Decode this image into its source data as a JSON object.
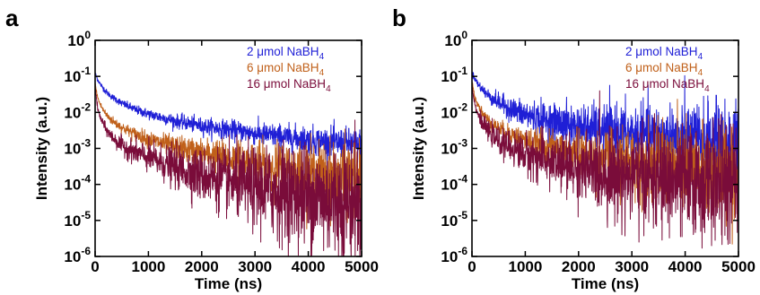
{
  "chart_data": [
    {
      "type": "line",
      "panel_label": "a",
      "xlabel": "Time (ns)",
      "ylabel": "Intensity (a.u.)",
      "xlim": [
        0,
        5000
      ],
      "ylim": [
        1e-06,
        1
      ],
      "yscale": "log",
      "grid": false,
      "legend_placement": "top-right",
      "x_ticks": [
        0,
        1000,
        2000,
        3000,
        4000,
        5000
      ],
      "y_ticks": [
        {
          "value": 1,
          "mantissa": "10",
          "exponent": "0"
        },
        {
          "value": 0.1,
          "mantissa": "10",
          "exponent": "-1"
        },
        {
          "value": 0.01,
          "mantissa": "10",
          "exponent": "-2"
        },
        {
          "value": 0.001,
          "mantissa": "10",
          "exponent": "-3"
        },
        {
          "value": 0.0001,
          "mantissa": "10",
          "exponent": "-4"
        },
        {
          "value": 1e-05,
          "mantissa": "10",
          "exponent": "-5"
        },
        {
          "value": 1e-06,
          "mantissa": "10",
          "exponent": "-6"
        }
      ],
      "series": [
        {
          "legend": {
            "prefix": "2 μmol NaBH",
            "subscript": "4"
          },
          "color": "#1f1fd6",
          "x": [
            0,
            50,
            100,
            200,
            300,
            500,
            750,
            1000,
            1500,
            2000,
            2500,
            3000,
            3500,
            4000,
            4500,
            5000
          ],
          "y": [
            0.12,
            0.08,
            0.06,
            0.038,
            0.028,
            0.018,
            0.012,
            0.009,
            0.0058,
            0.0042,
            0.0033,
            0.0026,
            0.0021,
            0.0017,
            0.0014,
            0.0012
          ],
          "noise_decades": [
            0.03,
            0.03,
            0.03,
            0.04,
            0.04,
            0.05,
            0.06,
            0.07,
            0.09,
            0.11,
            0.13,
            0.15,
            0.17,
            0.19,
            0.21,
            0.23
          ]
        },
        {
          "legend": {
            "prefix": "6 μmol NaBH",
            "subscript": "4"
          },
          "color": "#c0601a",
          "x": [
            0,
            50,
            100,
            200,
            300,
            500,
            750,
            1000,
            1500,
            2000,
            2500,
            3000,
            3500,
            4000,
            4500,
            5000
          ],
          "y": [
            0.06,
            0.025,
            0.016,
            0.009,
            0.0062,
            0.0038,
            0.0025,
            0.0018,
            0.0011,
            0.00075,
            0.00052,
            0.00038,
            0.00028,
            0.00021,
            0.00016,
            0.00012
          ],
          "noise_decades": [
            0.03,
            0.03,
            0.04,
            0.05,
            0.06,
            0.07,
            0.09,
            0.11,
            0.15,
            0.2,
            0.25,
            0.3,
            0.36,
            0.42,
            0.48,
            0.54
          ]
        },
        {
          "legend": {
            "prefix": "16 μmol NaBH",
            "subscript": "4"
          },
          "color": "#7a0c3a",
          "x": [
            0,
            50,
            100,
            200,
            300,
            500,
            750,
            1000,
            1500,
            2000,
            2500,
            3000,
            3500,
            4000,
            4500,
            5000
          ],
          "y": [
            0.05,
            0.012,
            0.007,
            0.0035,
            0.0022,
            0.0012,
            0.0008,
            0.00055,
            0.0003,
            0.00018,
            0.00012,
            8e-05,
            6e-05,
            4.5e-05,
            3.5e-05,
            3e-05
          ],
          "noise_decades": [
            0.03,
            0.04,
            0.05,
            0.07,
            0.09,
            0.12,
            0.16,
            0.2,
            0.28,
            0.36,
            0.45,
            0.55,
            0.65,
            0.72,
            0.78,
            0.82
          ]
        }
      ]
    },
    {
      "type": "line",
      "panel_label": "b",
      "xlabel": "Time (ns)",
      "ylabel": "Intensity (a.u.)",
      "xlim": [
        0,
        5000
      ],
      "ylim": [
        1e-06,
        1
      ],
      "yscale": "log",
      "grid": false,
      "legend_placement": "top-right",
      "x_ticks": [
        0,
        1000,
        2000,
        3000,
        4000,
        5000
      ],
      "y_ticks": [
        {
          "value": 1,
          "mantissa": "10",
          "exponent": "0"
        },
        {
          "value": 0.1,
          "mantissa": "10",
          "exponent": "-1"
        },
        {
          "value": 0.01,
          "mantissa": "10",
          "exponent": "-2"
        },
        {
          "value": 0.001,
          "mantissa": "10",
          "exponent": "-3"
        },
        {
          "value": 0.0001,
          "mantissa": "10",
          "exponent": "-4"
        },
        {
          "value": 1e-05,
          "mantissa": "10",
          "exponent": "-5"
        },
        {
          "value": 1e-06,
          "mantissa": "10",
          "exponent": "-6"
        }
      ],
      "series": [
        {
          "legend": {
            "prefix": "2 μmol NaBH",
            "subscript": "4"
          },
          "color": "#1f1fd6",
          "x": [
            0,
            50,
            100,
            200,
            300,
            500,
            750,
            1000,
            1500,
            2000,
            2500,
            3000,
            3500,
            4000,
            4500,
            5000
          ],
          "y": [
            0.13,
            0.09,
            0.065,
            0.042,
            0.03,
            0.019,
            0.012,
            0.0085,
            0.0055,
            0.004,
            0.0031,
            0.0025,
            0.002,
            0.0017,
            0.0015,
            0.0013
          ],
          "noise_decades": [
            0.03,
            0.04,
            0.05,
            0.07,
            0.09,
            0.12,
            0.16,
            0.2,
            0.25,
            0.3,
            0.35,
            0.4,
            0.45,
            0.5,
            0.54,
            0.58
          ]
        },
        {
          "legend": {
            "prefix": "6 μmol NaBH",
            "subscript": "4"
          },
          "color": "#c0601a",
          "x": [
            0,
            50,
            100,
            200,
            300,
            500,
            750,
            1000,
            1500,
            2000,
            2500,
            3000,
            3500,
            4000,
            4500,
            5000
          ],
          "y": [
            0.07,
            0.028,
            0.018,
            0.0095,
            0.0062,
            0.0036,
            0.0024,
            0.0017,
            0.001,
            0.00068,
            0.0005,
            0.0004,
            0.00032,
            0.00026,
            0.00022,
            0.00018
          ],
          "noise_decades": [
            0.03,
            0.04,
            0.05,
            0.06,
            0.08,
            0.1,
            0.13,
            0.16,
            0.22,
            0.3,
            0.38,
            0.46,
            0.54,
            0.6,
            0.66,
            0.72
          ]
        },
        {
          "legend": {
            "prefix": "16 μmol NaBH",
            "subscript": "4"
          },
          "color": "#7a0c3a",
          "x": [
            0,
            50,
            100,
            200,
            300,
            500,
            750,
            1000,
            1500,
            2000,
            2500,
            3000,
            3500,
            4000,
            4500,
            5000
          ],
          "y": [
            0.055,
            0.018,
            0.01,
            0.0048,
            0.003,
            0.0016,
            0.001,
            0.0007,
            0.00042,
            0.00028,
            0.0002,
            0.00016,
            0.00013,
            0.00011,
            0.0001,
            9e-05
          ],
          "noise_decades": [
            0.03,
            0.05,
            0.07,
            0.1,
            0.13,
            0.17,
            0.22,
            0.28,
            0.36,
            0.45,
            0.55,
            0.62,
            0.68,
            0.72,
            0.75,
            0.78
          ]
        }
      ]
    }
  ]
}
